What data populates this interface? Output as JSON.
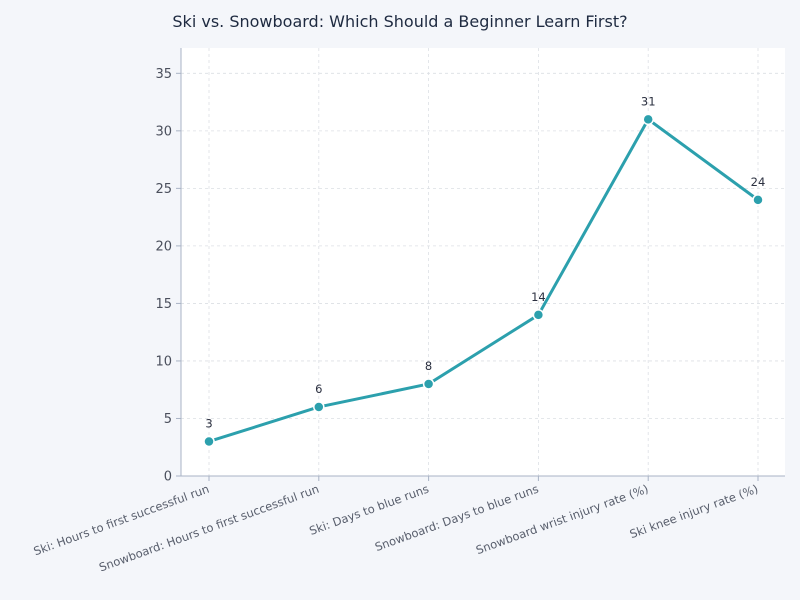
{
  "chart_data": {
    "type": "line",
    "title": "Ski vs. Snowboard: Which Should a Beginner Learn First?",
    "xlabel": "",
    "ylabel": "",
    "categories": [
      "Ski: Hours to first successful run",
      "Snowboard: Hours to first successful run",
      "Ski: Days to blue runs",
      "Snowboard: Days to blue runs",
      "Snowboard wrist injury rate (%)",
      "Ski knee injury rate (%)"
    ],
    "values": [
      3,
      6,
      8,
      14,
      31,
      24
    ],
    "data_labels": [
      "3",
      "6",
      "8",
      "14",
      "31",
      "24"
    ],
    "yticks": [
      0,
      5,
      10,
      15,
      20,
      25,
      30,
      35
    ],
    "ylim": [
      0,
      37.2
    ],
    "grid": true,
    "legend": null,
    "colors": {
      "line": "#2ca0ad",
      "background": "#f4f6fa",
      "plot_bg": "#ffffff",
      "grid": "#dcdfe4",
      "axis": "#a9b3c5",
      "tick_text": "#4a4f5c",
      "title": "#1e2a40"
    }
  }
}
